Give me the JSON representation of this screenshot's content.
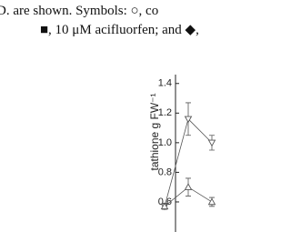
{
  "caption_lines": [
    "D. are shown. Symbols: ○, co",
    "■, 10 μM acifluorfen; and ◆,"
  ],
  "chart_data": {
    "type": "line",
    "ylabel": "tathione g FW⁻¹",
    "categories": [
      null,
      null,
      null
    ],
    "series": [
      {
        "name": null,
        "color": "#555555",
        "marker": "triangle-down",
        "values": [
          0.57,
          1.16,
          1.0
        ],
        "errors": [
          0.02,
          0.11,
          0.05
        ]
      },
      {
        "name": null,
        "color": "#555555",
        "marker": "triangle-up",
        "values": [
          0.57,
          0.7,
          0.6
        ],
        "errors": [
          0.02,
          0.06,
          0.03
        ]
      }
    ],
    "ylim": [
      0.4,
      1.46
    ],
    "yticks": [
      0.6,
      0.8,
      {
        "value": 1,
        "label": "1.0"
      },
      1.2,
      1.4
    ]
  }
}
